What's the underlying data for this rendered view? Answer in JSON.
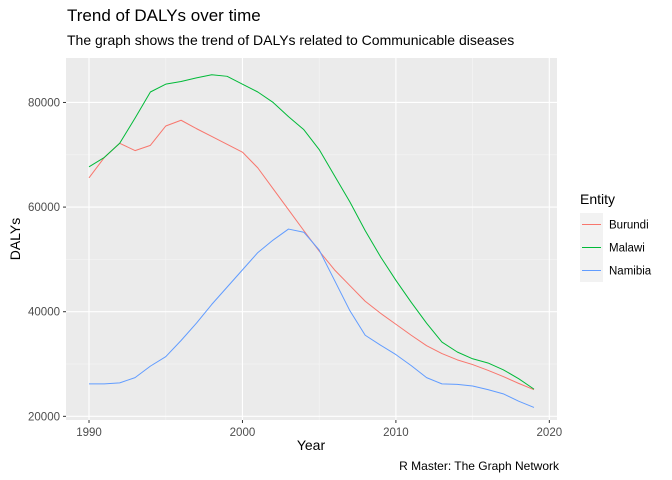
{
  "title": "Trend of DALYs over time",
  "subtitle": "The graph shows the trend  of DALYs related to Communicable diseases",
  "caption": "R Master: The Graph Network",
  "chart_data": {
    "type": "line",
    "xlabel": "Year",
    "ylabel": "DALYs",
    "xlim": [
      1988.5,
      2020.5
    ],
    "ylim": [
      19300,
      88500
    ],
    "x_ticks": [
      1990,
      2000,
      2010,
      2020
    ],
    "y_ticks": [
      20000,
      40000,
      60000,
      80000
    ],
    "x_tick_labels": [
      "1990",
      "2000",
      "2010",
      "2020"
    ],
    "y_tick_labels": [
      "20000",
      "40000",
      "60000",
      "80000"
    ],
    "grid": true,
    "legend_title": "Entity",
    "legend_position": "right",
    "x": [
      1990,
      1991,
      1992,
      1993,
      1994,
      1995,
      1996,
      1997,
      1998,
      1999,
      2000,
      2001,
      2002,
      2003,
      2004,
      2005,
      2006,
      2007,
      2008,
      2009,
      2010,
      2011,
      2012,
      2013,
      2014,
      2015,
      2016,
      2017,
      2018,
      2019
    ],
    "series": [
      {
        "name": "Burundi",
        "color": "#F8766D",
        "values": [
          65600,
          69500,
          72200,
          70800,
          71800,
          75500,
          76600,
          75000,
          73500,
          72000,
          70500,
          67500,
          63500,
          59500,
          55500,
          51600,
          48000,
          45000,
          42000,
          39700,
          37600,
          35500,
          33500,
          32000,
          30800,
          29900,
          28800,
          27600,
          26300,
          25100
        ]
      },
      {
        "name": "Malawi",
        "color": "#00BA38",
        "values": [
          67700,
          69500,
          72200,
          77000,
          82000,
          83500,
          84000,
          84700,
          85300,
          85000,
          83500,
          82000,
          80000,
          77300,
          74800,
          71000,
          66000,
          61000,
          55500,
          50500,
          46000,
          41800,
          37800,
          34200,
          32300,
          31000,
          30200,
          28900,
          27200,
          25200
        ]
      },
      {
        "name": "Namibia",
        "color": "#619CFF",
        "values": [
          26200,
          26200,
          26400,
          27400,
          29600,
          31400,
          34500,
          37800,
          41400,
          44700,
          48000,
          51300,
          53700,
          55800,
          55200,
          51800,
          46000,
          40200,
          35500,
          33600,
          31800,
          29700,
          27400,
          26200,
          26100,
          25800,
          25100,
          24300,
          22900,
          21700
        ]
      }
    ]
  }
}
